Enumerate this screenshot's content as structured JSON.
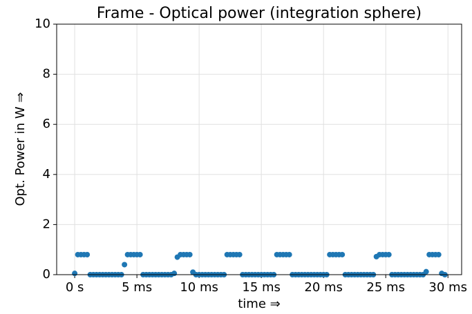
{
  "chart_data": {
    "type": "scatter",
    "title": "Frame - Optical power (integration sphere)",
    "x_label": "time ⇒",
    "y_label": "Opt. Power in W ⇒",
    "x": [
      0,
      0.25,
      0.5,
      0.75,
      1,
      1.25,
      1.5,
      1.75,
      2,
      2.25,
      2.5,
      2.75,
      3,
      3.25,
      3.5,
      3.75,
      4,
      4.25,
      4.5,
      4.75,
      5,
      5.25,
      5.5,
      5.75,
      6,
      6.25,
      6.5,
      6.75,
      7,
      7.25,
      7.5,
      7.75,
      8,
      8.25,
      8.5,
      8.75,
      9,
      9.25,
      9.5,
      9.75,
      10,
      10.25,
      10.5,
      10.75,
      11,
      11.25,
      11.5,
      11.75,
      12,
      12.25,
      12.5,
      12.75,
      13,
      13.25,
      13.5,
      13.75,
      14,
      14.25,
      14.5,
      14.75,
      15,
      15.25,
      15.5,
      15.75,
      16,
      16.25,
      16.5,
      16.75,
      17,
      17.25,
      17.5,
      17.75,
      18,
      18.25,
      18.5,
      18.75,
      19,
      19.25,
      19.5,
      19.75,
      20,
      20.25,
      20.5,
      20.75,
      21,
      21.25,
      21.5,
      21.75,
      22,
      22.25,
      22.5,
      22.75,
      23,
      23.25,
      23.5,
      23.75,
      24,
      24.25,
      24.5,
      24.75,
      25,
      25.25,
      25.5,
      25.75,
      26,
      26.25,
      26.5,
      26.75,
      27,
      27.25,
      27.5,
      27.75,
      28,
      28.25,
      28.5,
      28.75,
      29,
      29.25,
      29.5,
      29.75
    ],
    "values": [
      0.05,
      0.8,
      0.8,
      0.8,
      0.8,
      0,
      0,
      0,
      0,
      0,
      0,
      0,
      0,
      0,
      0,
      0,
      0.4,
      0.8,
      0.8,
      0.8,
      0.8,
      0.8,
      0,
      0,
      0,
      0,
      0,
      0,
      0,
      0,
      0,
      0,
      0.05,
      0.7,
      0.8,
      0.8,
      0.8,
      0.8,
      0.1,
      0,
      0,
      0,
      0,
      0,
      0,
      0,
      0,
      0,
      0,
      0.8,
      0.8,
      0.8,
      0.8,
      0.8,
      0,
      0,
      0,
      0,
      0,
      0,
      0,
      0,
      0,
      0,
      0,
      0.8,
      0.8,
      0.8,
      0.8,
      0.8,
      0,
      0,
      0,
      0,
      0,
      0,
      0,
      0,
      0,
      0,
      0,
      0,
      0.8,
      0.8,
      0.8,
      0.8,
      0.8,
      0,
      0,
      0,
      0,
      0,
      0,
      0,
      0,
      0,
      0,
      0.72,
      0.8,
      0.8,
      0.8,
      0.8,
      0,
      0,
      0,
      0,
      0,
      0,
      0,
      0,
      0,
      0,
      0,
      0.12,
      0.8,
      0.8,
      0.8,
      0.8,
      0.05,
      0
    ],
    "color": "#1f77b4",
    "xlim": [
      -1.45,
      31.1
    ],
    "xticks": [
      {
        "value": 0,
        "label": "0 s"
      },
      {
        "value": 5,
        "label": "5 ms"
      },
      {
        "value": 10,
        "label": "10 ms"
      },
      {
        "value": 15,
        "label": "15 ms"
      },
      {
        "value": 20,
        "label": "20 ms"
      },
      {
        "value": 25,
        "label": "25 ms"
      },
      {
        "value": 30,
        "label": "30 ms"
      }
    ],
    "ylim": [
      0,
      10
    ],
    "yticks": [
      0,
      2,
      4,
      6,
      8,
      10
    ],
    "grid": true
  }
}
